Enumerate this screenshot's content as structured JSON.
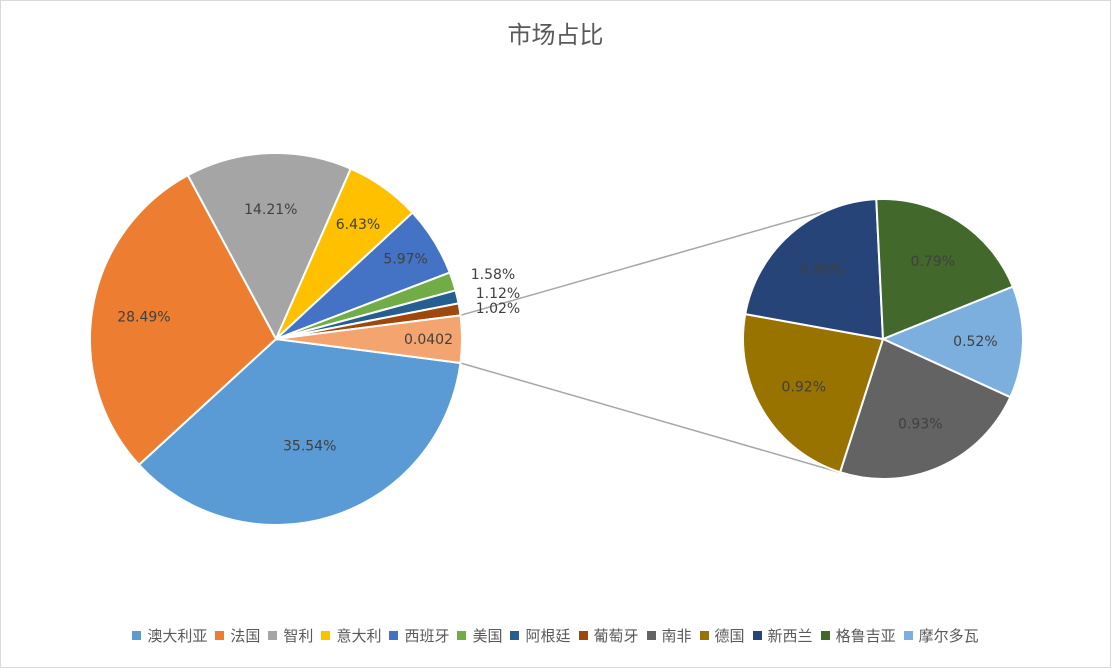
{
  "chart_data": {
    "type": "pie",
    "subtype": "pie-of-pie",
    "title": "市场占比",
    "main_pie": {
      "slices": [
        {
          "name": "澳大利亚",
          "label": "35.54%",
          "value": 35.54,
          "color": "#5B9BD5"
        },
        {
          "name": "法国",
          "label": "28.49%",
          "value": 28.49,
          "color": "#ED7D31"
        },
        {
          "name": "智利",
          "label": "14.21%",
          "value": 14.21,
          "color": "#A5A5A5"
        },
        {
          "name": "意大利",
          "label": "6.43%",
          "value": 6.43,
          "color": "#FFC000"
        },
        {
          "name": "西班牙",
          "label": "5.97%",
          "value": 5.97,
          "color": "#4472C4"
        },
        {
          "name": "美国",
          "label": "1.58%",
          "value": 1.58,
          "color": "#70AD47"
        },
        {
          "name": "阿根廷",
          "label": "1.12%",
          "value": 1.12,
          "color": "#255E91"
        },
        {
          "name": "葡萄牙",
          "label": "1.02%",
          "value": 1.02,
          "color": "#9E480E"
        },
        {
          "name": "",
          "label": "0.0402",
          "value": 4.02,
          "color": "#F4A46E"
        }
      ]
    },
    "secondary_pie": {
      "slices": [
        {
          "name": "南非",
          "label": "0.93%",
          "value": 0.93,
          "color": "#636363"
        },
        {
          "name": "德国",
          "label": "0.92%",
          "value": 0.92,
          "color": "#997300"
        },
        {
          "name": "新西兰",
          "label": "0.86%",
          "value": 0.86,
          "color": "#264478"
        },
        {
          "name": "格鲁吉亚",
          "label": "0.79%",
          "value": 0.79,
          "color": "#43682B"
        },
        {
          "name": "摩尔多瓦",
          "label": "0.52%",
          "value": 0.52,
          "color": "#7CAFDD"
        }
      ]
    },
    "legend": {
      "position": "bottom",
      "entries": [
        {
          "name": "澳大利亚",
          "color": "#5B9BD5"
        },
        {
          "name": "法国",
          "color": "#ED7D31"
        },
        {
          "name": "智利",
          "color": "#A5A5A5"
        },
        {
          "name": "意大利",
          "color": "#FFC000"
        },
        {
          "name": "西班牙",
          "color": "#4472C4"
        },
        {
          "name": "美国",
          "color": "#70AD47"
        },
        {
          "name": "阿根廷",
          "color": "#255E91"
        },
        {
          "name": "葡萄牙",
          "color": "#9E480E"
        },
        {
          "name": "南非",
          "color": "#636363"
        },
        {
          "name": "德国",
          "color": "#997300"
        },
        {
          "name": "新西兰",
          "color": "#264478"
        },
        {
          "name": "格鲁吉亚",
          "color": "#43682B"
        },
        {
          "name": "摩尔多瓦",
          "color": "#7CAFDD"
        }
      ]
    }
  }
}
